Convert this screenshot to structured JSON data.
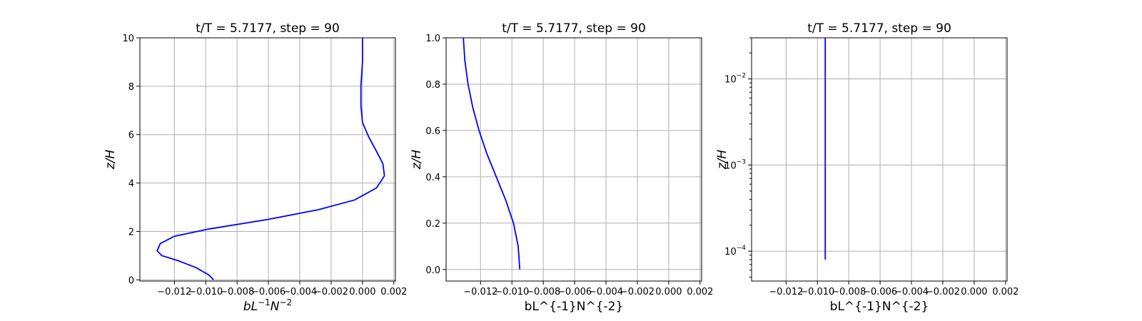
{
  "chart_data": [
    {
      "type": "line",
      "title": "t/T = 5.7177, step = 90",
      "xlabel": "bL",
      "xlabel_sup1": "−1",
      "xlabel_mid": "N",
      "xlabel_sup2": "−2",
      "ylabel": "z/H",
      "xlim": [
        -0.0142,
        0.0021
      ],
      "ylim": [
        -0.05,
        10
      ],
      "yscale": "linear",
      "xticks": [
        -0.012,
        -0.01,
        -0.008,
        -0.006,
        -0.004,
        -0.002,
        0.0,
        0.002
      ],
      "xtick_labels": [
        "−0.012",
        "−0.010",
        "−0.008",
        "−0.006",
        "−0.004",
        "−0.002",
        "0.000",
        "0.002"
      ],
      "yticks": [
        0,
        2,
        4,
        6,
        8,
        10
      ],
      "ytick_labels": [
        "0",
        "2",
        "4",
        "6",
        "8",
        "10"
      ],
      "grid": true,
      "line_color": "#0000ff",
      "series": [
        {
          "x": [
            -0.0095,
            -0.0098,
            -0.0106,
            -0.0118,
            -0.0128,
            -0.0131,
            -0.0129,
            -0.012,
            -0.0098,
            -0.006,
            -0.0028,
            -0.0005,
            0.0009,
            0.0014,
            0.0013,
            0.0009,
            0.0004,
            0.0,
            -0.0001,
            -0.0001,
            0.0,
            0.0
          ],
          "y": [
            0.0,
            0.2,
            0.5,
            0.8,
            1.0,
            1.2,
            1.5,
            1.8,
            2.1,
            2.5,
            2.9,
            3.3,
            3.8,
            4.3,
            4.8,
            5.3,
            5.9,
            6.5,
            7.2,
            8.0,
            9.0,
            10.0
          ]
        }
      ]
    },
    {
      "type": "line",
      "title": "t/T = 5.7177, step = 90",
      "xlabel": "bL^{-1}N^{-2}",
      "ylabel": "z/H",
      "xlim": [
        -0.0142,
        0.0021
      ],
      "ylim": [
        -0.05,
        1.0
      ],
      "yscale": "linear",
      "xticks": [
        -0.012,
        -0.01,
        -0.008,
        -0.006,
        -0.004,
        -0.002,
        0.0,
        0.002
      ],
      "xtick_labels": [
        "−0.012",
        "−0.010",
        "−0.008",
        "−0.006",
        "−0.004",
        "−0.002",
        "0.000",
        "0.002"
      ],
      "yticks": [
        0.0,
        0.2,
        0.4,
        0.6,
        0.8,
        1.0
      ],
      "ytick_labels": [
        "0.0",
        "0.2",
        "0.4",
        "0.6",
        "0.8",
        "1.0"
      ],
      "grid": true,
      "line_color": "#0000ff",
      "series": [
        {
          "x": [
            -0.0095,
            -0.0096,
            -0.0099,
            -0.0104,
            -0.011,
            -0.0116,
            -0.0121,
            -0.0125,
            -0.0128,
            -0.013,
            -0.0131
          ],
          "y": [
            0.0,
            0.1,
            0.2,
            0.3,
            0.4,
            0.5,
            0.6,
            0.7,
            0.8,
            0.9,
            1.0
          ]
        }
      ]
    },
    {
      "type": "line",
      "title": "t/T = 5.7177, step = 90",
      "xlabel": "bL^{-1}N^{-2}",
      "ylabel": "z/H",
      "xlim": [
        -0.0142,
        0.0021
      ],
      "ylim": [
        4.5e-05,
        0.03
      ],
      "yscale": "log",
      "xticks": [
        -0.012,
        -0.01,
        -0.008,
        -0.006,
        -0.004,
        -0.002,
        0.0,
        0.002
      ],
      "xtick_labels": [
        "−0.012",
        "−0.010",
        "−0.008",
        "−0.006",
        "−0.004",
        "−0.002",
        "0.000",
        "0.002"
      ],
      "yticks": [
        0.0001,
        0.001,
        0.01
      ],
      "ytick_base": "10",
      "ytick_exps": [
        "−4",
        "−3",
        "−2"
      ],
      "grid": true,
      "line_color": "#0000ff",
      "series": [
        {
          "x": [
            -0.0095,
            -0.0095,
            -0.0095,
            -0.0095,
            -0.0095
          ],
          "y": [
            8e-05,
            0.0003,
            0.001,
            0.005,
            0.03
          ]
        }
      ]
    }
  ]
}
